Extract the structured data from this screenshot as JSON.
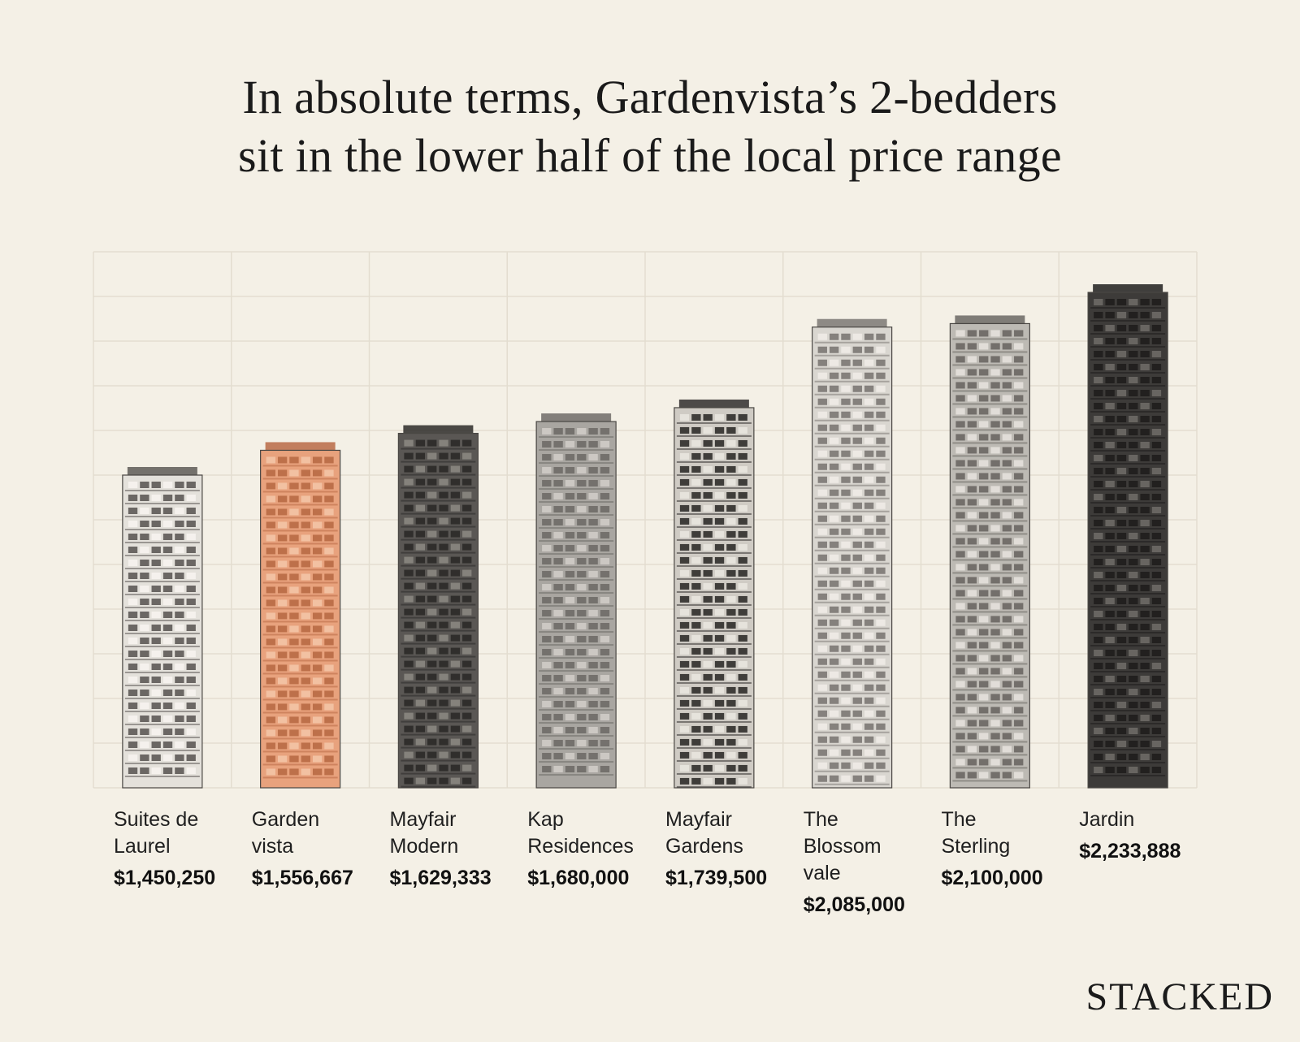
{
  "title_line1": "In absolute terms, Gardenvista’s 2-bedders",
  "title_line2": "sit in the lower half of the local price range",
  "brand": "STACKED",
  "colors": {
    "background": "#f4f0e6",
    "grid": "#e3ddd0",
    "highlight": "#e8a27d",
    "building_light": "#d9d6d0",
    "building_mid": "#a9a6a1",
    "building_dark": "#3d3b39"
  },
  "chart_data": {
    "type": "bar",
    "categories": [
      "Suites de Laurel",
      "Garden vista",
      "Mayfair Modern",
      "Kap Residences",
      "Mayfair Gardens",
      "The Blossom vale",
      "The Sterling",
      "Jardin"
    ],
    "label_lines": [
      [
        "Suites de",
        "Laurel"
      ],
      [
        "Garden",
        "vista"
      ],
      [
        "Mayfair",
        "Modern"
      ],
      [
        "Kap",
        "Residences"
      ],
      [
        "Mayfair",
        "Gardens"
      ],
      [
        "The",
        "Blossom",
        "vale"
      ],
      [
        "The",
        "Sterling"
      ],
      [
        "Jardin"
      ]
    ],
    "values": [
      1450250,
      1556667,
      1629333,
      1680000,
      1739500,
      2085000,
      2100000,
      2233888
    ],
    "value_labels": [
      "$1,450,250",
      "$1,556,667",
      "$1,629,333",
      "$1,680,000",
      "$1,739,500",
      "$2,085,000",
      "$2,100,000",
      "$2,233,888"
    ],
    "highlight_category": "Garden vista",
    "bar_style": "building illustrations",
    "ylim": [
      0,
      2400000
    ],
    "grid": true,
    "y_axis_labels": false,
    "legend": false
  }
}
